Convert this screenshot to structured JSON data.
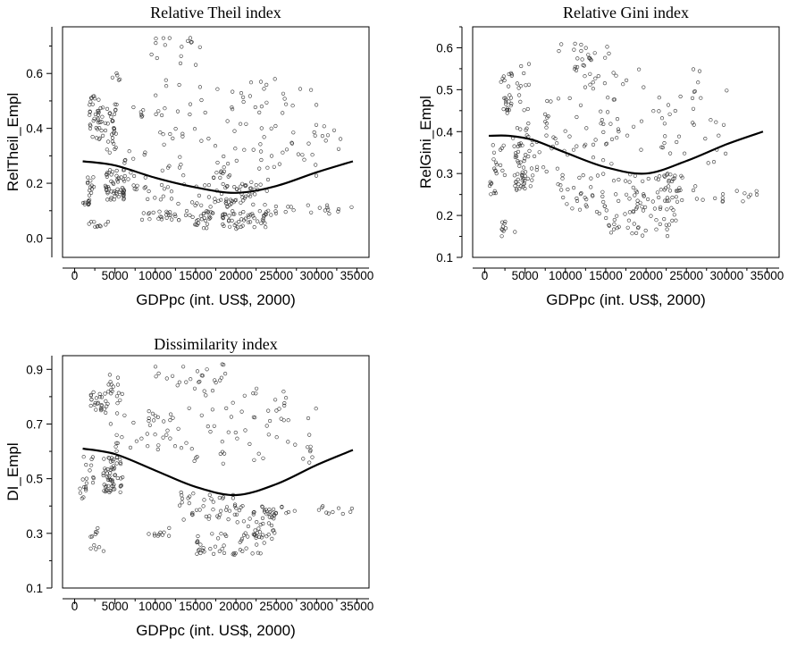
{
  "chart_data": [
    {
      "type": "scatter",
      "title": "Relative Theil index",
      "xlabel": "GDPpc (int. US$, 2000)",
      "ylabel": "RelTheil_Empl",
      "xlim": [
        -1500,
        36500
      ],
      "ylim": [
        -0.07,
        0.77
      ],
      "xticks": [
        0,
        5000,
        10000,
        15000,
        20000,
        25000,
        30000,
        35000
      ],
      "yticks": [
        0.0,
        0.2,
        0.4,
        0.6
      ],
      "ytick_labels": [
        "0.0",
        "0.2",
        "0.4",
        "0.6"
      ],
      "grid": false,
      "trend": {
        "x": [
          1000,
          5000,
          10000,
          15000,
          20000,
          25000,
          30000,
          34500
        ],
        "y": [
          0.28,
          0.265,
          0.22,
          0.185,
          0.165,
          0.19,
          0.24,
          0.28
        ]
      },
      "clusters": [
        {
          "x": [
            1000,
            2000
          ],
          "y": [
            0.12,
            0.14
          ],
          "n": 10
        },
        {
          "x": [
            1500,
            2500
          ],
          "y": [
            0.15,
            0.23
          ],
          "n": 12
        },
        {
          "x": [
            1700,
            4200
          ],
          "y": [
            0.04,
            0.06
          ],
          "n": 10
        },
        {
          "x": [
            1800,
            3500
          ],
          "y": [
            0.36,
            0.52
          ],
          "n": 40
        },
        {
          "x": [
            3800,
            5200
          ],
          "y": [
            0.3,
            0.5
          ],
          "n": 30
        },
        {
          "x": [
            3800,
            6200
          ],
          "y": [
            0.14,
            0.25
          ],
          "n": 55
        },
        {
          "x": [
            4500,
            6000
          ],
          "y": [
            0.55,
            0.62
          ],
          "n": 5
        },
        {
          "x": [
            6000,
            9000
          ],
          "y": [
            0.17,
            0.32
          ],
          "n": 20
        },
        {
          "x": [
            7000,
            10000
          ],
          "y": [
            0.42,
            0.48
          ],
          "n": 6
        },
        {
          "x": [
            8000,
            24000
          ],
          "y": [
            0.06,
            0.1
          ],
          "n": 50
        },
        {
          "x": [
            9500,
            16000
          ],
          "y": [
            0.62,
            0.73
          ],
          "n": 16
        },
        {
          "x": [
            9000,
            22000
          ],
          "y": [
            0.11,
            0.2
          ],
          "n": 40
        },
        {
          "x": [
            10000,
            30000
          ],
          "y": [
            0.22,
            0.58
          ],
          "n": 90
        },
        {
          "x": [
            14500,
            24000
          ],
          "y": [
            0.03,
            0.1
          ],
          "n": 50
        },
        {
          "x": [
            17000,
            24000
          ],
          "y": [
            0.12,
            0.26
          ],
          "n": 45
        },
        {
          "x": [
            22000,
            34500
          ],
          "y": [
            0.08,
            0.12
          ],
          "n": 22
        },
        {
          "x": [
            25000,
            33000
          ],
          "y": [
            0.28,
            0.5
          ],
          "n": 14
        }
      ]
    },
    {
      "type": "scatter",
      "title": "Relative Gini index",
      "xlabel": "GDPpc (int. US$, 2000)",
      "ylabel": "RelGini_Empl",
      "xlim": [
        -1500,
        36500
      ],
      "ylim": [
        0.1,
        0.65
      ],
      "xticks": [
        0,
        5000,
        10000,
        15000,
        20000,
        25000,
        30000,
        35000
      ],
      "yticks": [
        0.1,
        0.2,
        0.3,
        0.4,
        0.5,
        0.6
      ],
      "ytick_labels": [
        "0.1",
        "0.2",
        "0.3",
        "0.4",
        "0.5",
        "0.6"
      ],
      "grid": false,
      "trend": {
        "x": [
          500,
          3000,
          6000,
          10000,
          15000,
          20000,
          25000,
          30000,
          34500
        ],
        "y": [
          0.39,
          0.39,
          0.38,
          0.35,
          0.315,
          0.3,
          0.33,
          0.37,
          0.4
        ]
      },
      "clusters": [
        {
          "x": [
            600,
            1600
          ],
          "y": [
            0.25,
            0.28
          ],
          "n": 8
        },
        {
          "x": [
            1000,
            2600
          ],
          "y": [
            0.29,
            0.37
          ],
          "n": 15
        },
        {
          "x": [
            1500,
            4000
          ],
          "y": [
            0.15,
            0.19
          ],
          "n": 10
        },
        {
          "x": [
            2000,
            3500
          ],
          "y": [
            0.44,
            0.54
          ],
          "n": 25
        },
        {
          "x": [
            3500,
            6000
          ],
          "y": [
            0.26,
            0.42
          ],
          "n": 60
        },
        {
          "x": [
            4000,
            5500
          ],
          "y": [
            0.45,
            0.57
          ],
          "n": 12
        },
        {
          "x": [
            6000,
            10000
          ],
          "y": [
            0.3,
            0.5
          ],
          "n": 25
        },
        {
          "x": [
            9000,
            17000
          ],
          "y": [
            0.55,
            0.61
          ],
          "n": 22
        },
        {
          "x": [
            9000,
            20000
          ],
          "y": [
            0.2,
            0.3
          ],
          "n": 45
        },
        {
          "x": [
            10000,
            30000
          ],
          "y": [
            0.32,
            0.55
          ],
          "n": 90
        },
        {
          "x": [
            15000,
            24000
          ],
          "y": [
            0.15,
            0.22
          ],
          "n": 45
        },
        {
          "x": [
            17000,
            25000
          ],
          "y": [
            0.22,
            0.3
          ],
          "n": 45
        },
        {
          "x": [
            22000,
            34500
          ],
          "y": [
            0.23,
            0.27
          ],
          "n": 22
        }
      ]
    },
    {
      "type": "scatter",
      "title": "Dissimilarity index",
      "xlabel": "GDPpc (int. US$, 2000)",
      "ylabel": "DI_Empl",
      "xlim": [
        -1500,
        36500
      ],
      "ylim": [
        0.1,
        0.95
      ],
      "xticks": [
        0,
        5000,
        10000,
        15000,
        20000,
        25000,
        30000,
        35000
      ],
      "yticks": [
        0.1,
        0.3,
        0.5,
        0.7,
        0.9
      ],
      "ytick_labels": [
        "0.1",
        "0.3",
        "0.5",
        "0.7",
        "0.9"
      ],
      "grid": false,
      "trend": {
        "x": [
          1000,
          5000,
          10000,
          15000,
          20000,
          25000,
          30000,
          34500
        ],
        "y": [
          0.61,
          0.59,
          0.53,
          0.47,
          0.44,
          0.48,
          0.55,
          0.605
        ]
      },
      "clusters": [
        {
          "x": [
            600,
            1600
          ],
          "y": [
            0.42,
            0.47
          ],
          "n": 8
        },
        {
          "x": [
            1000,
            2500
          ],
          "y": [
            0.48,
            0.58
          ],
          "n": 12
        },
        {
          "x": [
            1500,
            3000
          ],
          "y": [
            0.27,
            0.32
          ],
          "n": 6
        },
        {
          "x": [
            2000,
            4000
          ],
          "y": [
            0.23,
            0.26
          ],
          "n": 5
        },
        {
          "x": [
            2000,
            4000
          ],
          "y": [
            0.74,
            0.82
          ],
          "n": 25
        },
        {
          "x": [
            3500,
            6000
          ],
          "y": [
            0.45,
            0.58
          ],
          "n": 60
        },
        {
          "x": [
            4000,
            6000
          ],
          "y": [
            0.6,
            0.88
          ],
          "n": 25
        },
        {
          "x": [
            6000,
            12000
          ],
          "y": [
            0.6,
            0.75
          ],
          "n": 25
        },
        {
          "x": [
            9000,
            19000
          ],
          "y": [
            0.85,
            0.92
          ],
          "n": 22
        },
        {
          "x": [
            9000,
            12000
          ],
          "y": [
            0.29,
            0.32
          ],
          "n": 10
        },
        {
          "x": [
            12000,
            30000
          ],
          "y": [
            0.55,
            0.85
          ],
          "n": 70
        },
        {
          "x": [
            13000,
            20000
          ],
          "y": [
            0.35,
            0.45
          ],
          "n": 40
        },
        {
          "x": [
            15000,
            24000
          ],
          "y": [
            0.22,
            0.3
          ],
          "n": 45
        },
        {
          "x": [
            20000,
            25000
          ],
          "y": [
            0.28,
            0.4
          ],
          "n": 45
        },
        {
          "x": [
            22000,
            34500
          ],
          "y": [
            0.37,
            0.4
          ],
          "n": 22
        }
      ]
    }
  ]
}
